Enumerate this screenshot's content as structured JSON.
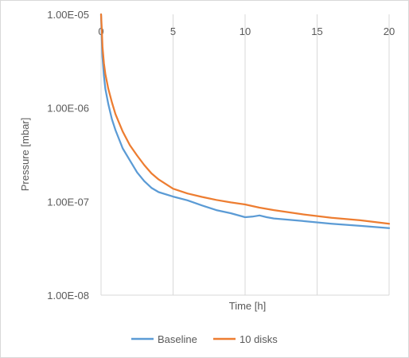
{
  "chart_data": {
    "type": "line",
    "title": "",
    "xlabel": "Time [h]",
    "ylabel": "Pressure  [mbar]",
    "xlim": [
      0,
      20
    ],
    "ylim": [
      1e-08,
      1e-05
    ],
    "y_scale": "log",
    "x_ticks": [
      "0",
      "5",
      "10",
      "15",
      "20"
    ],
    "y_ticks": [
      "1.00E-05",
      "1.00E-06",
      "1.00E-07",
      "1.00E-08"
    ],
    "grid": "vertical",
    "legend_position": "bottom",
    "series": [
      {
        "name": "Baseline",
        "color": "#5b9bd5",
        "x": [
          0,
          0.05,
          0.1,
          0.2,
          0.3,
          0.5,
          0.75,
          1,
          1.5,
          2,
          2.5,
          3,
          3.5,
          4,
          5,
          6,
          7,
          8,
          9,
          10,
          10.5,
          11,
          11.5,
          12,
          14,
          16,
          18,
          20
        ],
        "y": [
          1e-05,
          5.5e-06,
          3.5e-06,
          2.2e-06,
          1.6e-06,
          1.1e-06,
          7.6e-07,
          5.8e-07,
          3.7e-07,
          2.75e-07,
          2.05e-07,
          1.65e-07,
          1.4e-07,
          1.26e-07,
          1.13e-07,
          1.03e-07,
          9.1e-08,
          8.1e-08,
          7.5e-08,
          6.8e-08,
          6.9e-08,
          7.1e-08,
          6.8e-08,
          6.6e-08,
          6.2e-08,
          5.8e-08,
          5.5e-08,
          5.2e-08
        ]
      },
      {
        "name": "10 disks",
        "color": "#ed7d31",
        "x": [
          0,
          0.05,
          0.1,
          0.2,
          0.3,
          0.5,
          0.75,
          1,
          1.5,
          2,
          2.5,
          3,
          3.5,
          4,
          5,
          6,
          7,
          8,
          9,
          10,
          11,
          12,
          14,
          16,
          18,
          20
        ],
        "y": [
          1e-05,
          7e-06,
          4.5e-06,
          3e-06,
          2.3e-06,
          1.6e-06,
          1.15e-06,
          8.6e-07,
          5.6e-07,
          4e-07,
          3.1e-07,
          2.45e-07,
          2e-07,
          1.72e-07,
          1.37e-07,
          1.22e-07,
          1.12e-07,
          1.04e-07,
          9.8e-08,
          9.3e-08,
          8.6e-08,
          8.1e-08,
          7.3e-08,
          6.7e-08,
          6.3e-08,
          5.8e-08
        ]
      }
    ]
  }
}
